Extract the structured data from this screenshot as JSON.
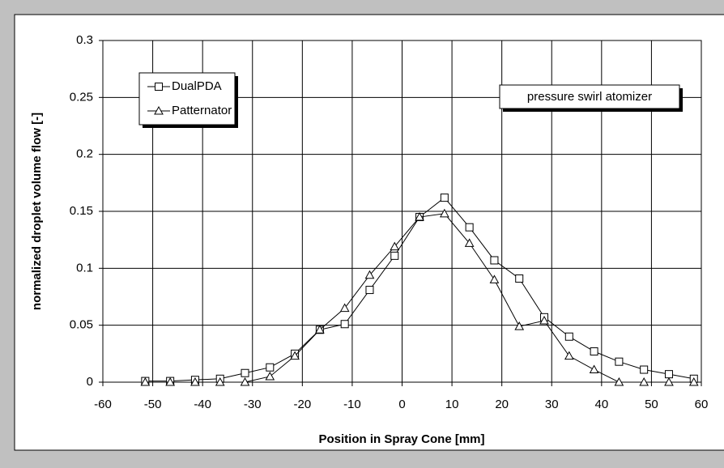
{
  "chart_data": {
    "type": "line",
    "xlabel": "Position in Spray Cone [mm]",
    "ylabel": "normalized droplet volume flow [-]",
    "annotation": "pressure swirl atomizer",
    "x": [
      -51.5,
      -46.5,
      -41.5,
      -36.5,
      -31.5,
      -26.5,
      -21.5,
      -16.5,
      -11.5,
      -6.5,
      -1.5,
      3.5,
      8.5,
      13.5,
      18.5,
      23.5,
      28.5,
      33.5,
      38.5,
      43.5,
      48.5,
      53.5,
      58.5
    ],
    "series": [
      {
        "name": "DualPDA",
        "marker": "square",
        "color": "#000000",
        "values": [
          0.001,
          0.001,
          0.002,
          0.003,
          0.008,
          0.013,
          0.025,
          0.046,
          0.051,
          0.081,
          0.111,
          0.145,
          0.162,
          0.136,
          0.107,
          0.091,
          0.057,
          0.04,
          0.027,
          0.018,
          0.011,
          0.007,
          0.003
        ]
      },
      {
        "name": "Patternator",
        "marker": "triangle",
        "color": "#000000",
        "values": [
          0,
          0,
          0,
          0,
          0,
          0.005,
          0.023,
          0.046,
          0.065,
          0.094,
          0.119,
          0.145,
          0.148,
          0.122,
          0.09,
          0.049,
          0.054,
          0.023,
          0.011,
          0,
          0,
          0,
          0
        ]
      }
    ],
    "xlim": [
      -60,
      60
    ],
    "xticks": [
      -60,
      -50,
      -40,
      -30,
      -20,
      -10,
      0,
      10,
      20,
      30,
      40,
      50,
      60
    ],
    "ylim": [
      0,
      0.3
    ],
    "yticks": [
      0,
      0.05,
      0.1,
      0.15,
      0.2,
      0.25,
      0.3
    ],
    "grid": true,
    "legend": "top-left"
  }
}
